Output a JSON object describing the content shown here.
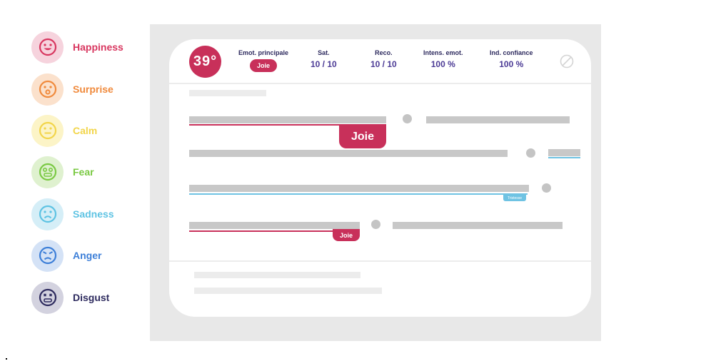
{
  "legend": [
    {
      "label": "Happiness",
      "icon": "happy-face-icon",
      "color": "#d8365f",
      "bg": "#f6d3dd"
    },
    {
      "label": "Surprise",
      "icon": "surprised-face-icon",
      "color": "#f08a3c",
      "bg": "#fbe1cc"
    },
    {
      "label": "Calm",
      "icon": "neutral-face-icon",
      "color": "#f2d54a",
      "bg": "#fcf4c7"
    },
    {
      "label": "Fear",
      "icon": "fearful-face-icon",
      "color": "#7ac943",
      "bg": "#dff1cf"
    },
    {
      "label": "Sadness",
      "icon": "sad-face-icon",
      "color": "#5ec3e3",
      "bg": "#d5eef7"
    },
    {
      "label": "Anger",
      "icon": "angry-face-icon",
      "color": "#3d7fd8",
      "bg": "#d4e2f6"
    },
    {
      "label": "Disgust",
      "icon": "disgusted-face-icon",
      "color": "#2d2a5e",
      "bg": "#d3d2df"
    }
  ],
  "header": {
    "score": "39°",
    "metrics": [
      {
        "label": "Emot. principale",
        "badge": "Joie"
      },
      {
        "label": "Sat.",
        "value": "10 / 10"
      },
      {
        "label": "Reco.",
        "value": "10 / 10"
      },
      {
        "label": "Intens. emot.",
        "value": "100 %"
      },
      {
        "label": "Ind. confiance",
        "value": "100 %"
      }
    ]
  },
  "tags": {
    "joie_large": "Joie",
    "tristesse_tiny": "Tristesse",
    "joie_small": "Joie"
  },
  "colors": {
    "accent": "#c8305a",
    "sadness": "#6fc3e3",
    "metric_label": "#2d2a5e",
    "metric_value": "#4b3a95"
  }
}
